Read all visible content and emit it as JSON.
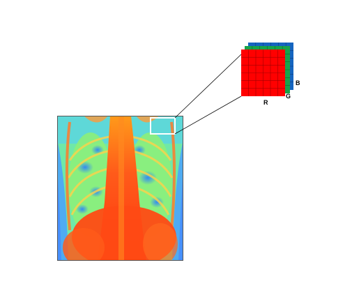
{
  "channels": {
    "r_label": "R",
    "g_label": "G",
    "b_label": "B"
  },
  "colors": {
    "red_channel": "#ff0000",
    "green_channel": "#17a34a",
    "blue_channel": "#1565c0",
    "highlight_box": "#ffffff",
    "connector": "#000000"
  },
  "image": {
    "subject": "chest-xray-heatmap",
    "colormap": "rainbow"
  },
  "grid": {
    "rows": 6,
    "cols": 6
  }
}
